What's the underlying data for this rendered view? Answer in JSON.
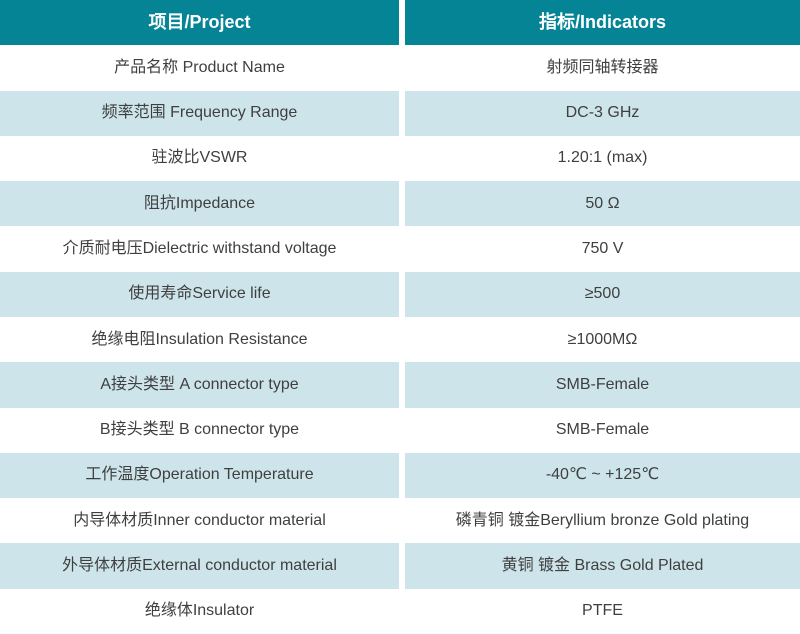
{
  "colors": {
    "header_background": "#058495",
    "header_text": "#ffffff",
    "alt_row_background": "#cde5ea",
    "body_text": "#3f3f3f",
    "divider": "#ffffff"
  },
  "table": {
    "header": {
      "project": "项目/Project",
      "indicator": "指标/Indicators"
    },
    "rows": [
      {
        "project": "产品名称 Product Name",
        "indicator": "射频同轴转接器"
      },
      {
        "project": "频率范围 Frequency Range",
        "indicator": "DC-3 GHz"
      },
      {
        "project": "驻波比VSWR",
        "indicator": "1.20:1 (max)"
      },
      {
        "project": "阻抗Impedance",
        "indicator": "50 Ω"
      },
      {
        "project": "介质耐电压Dielectric withstand voltage",
        "indicator": "750 V"
      },
      {
        "project": "使用寿命Service life",
        "indicator": "≥500"
      },
      {
        "project": "绝缘电阻Insulation Resistance",
        "indicator": "≥1000MΩ"
      },
      {
        "project": "A接头类型 A connector type",
        "indicator": "SMB-Female"
      },
      {
        "project": "B接头类型 B connector type",
        "indicator": "SMB-Female"
      },
      {
        "project": "工作温度Operation Temperature",
        "indicator": "-40℃ ~ +125℃"
      },
      {
        "project": "内导体材质Inner conductor material",
        "indicator": "磷青铜 镀金Beryllium bronze Gold plating"
      },
      {
        "project": "外导体材质External conductor material",
        "indicator": "黄铜 镀金 Brass Gold Plated"
      },
      {
        "project": "绝缘体Insulator",
        "indicator": "PTFE"
      }
    ]
  }
}
